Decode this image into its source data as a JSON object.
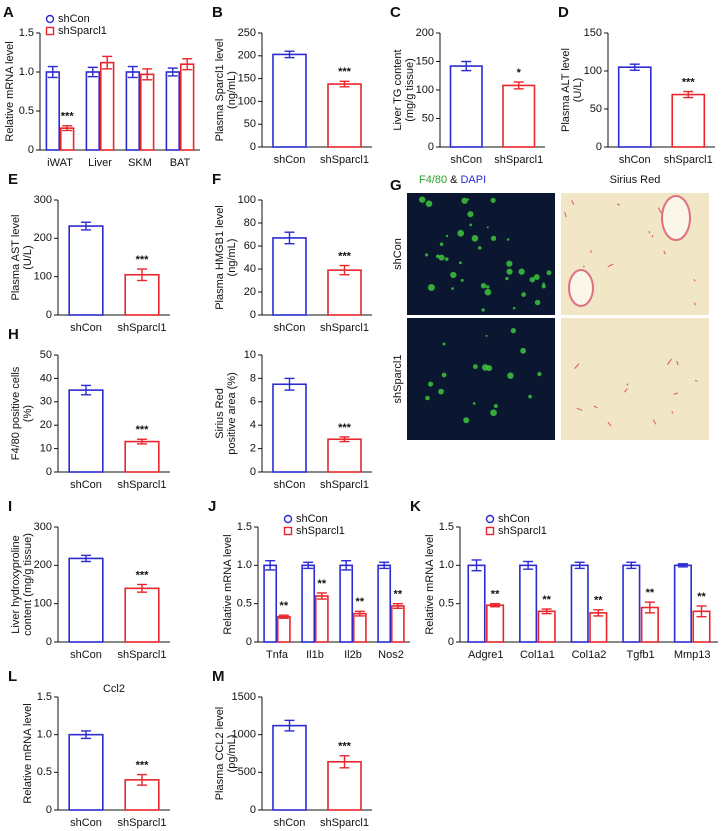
{
  "chart_data": [
    {
      "type": "grouped-bar",
      "panel": "A",
      "ylabel": [
        "Relative mRNA level"
      ],
      "categories": [
        "iWAT",
        "Liver",
        "SKM",
        "BAT"
      ],
      "ylim": [
        0,
        1.5
      ],
      "yticks": [
        0,
        0.5,
        {
          "value": 1,
          "label": "1.0"
        },
        1.5
      ],
      "legend": "top-left",
      "series": [
        {
          "name": "shCon",
          "color": "#2b2bd0",
          "marker": "circle",
          "values": [
            1.0,
            1.0,
            1.0,
            1.0
          ],
          "errors": [
            0.07,
            0.06,
            0.07,
            0.05
          ],
          "annotations": [
            null,
            null,
            null,
            null
          ]
        },
        {
          "name": "shSparcl1",
          "color": "#e8262b",
          "marker": "square",
          "values": [
            0.28,
            1.12,
            0.97,
            1.1
          ],
          "errors": [
            0.03,
            0.08,
            0.07,
            0.07
          ],
          "annotations": [
            "***",
            null,
            null,
            null
          ]
        }
      ]
    },
    {
      "type": "bar",
      "panel": "B",
      "ylabel": [
        "Plasma Sparcl1 level",
        "(ng/mL)"
      ],
      "categories": [
        "shCon",
        "shSparcl1"
      ],
      "colors": [
        "#2b2bd0",
        "#e8262b"
      ],
      "values": [
        203,
        138
      ],
      "errors": [
        7,
        6
      ],
      "annotations": [
        null,
        "***"
      ],
      "ylim": [
        0,
        250
      ],
      "yticks": [
        0,
        50,
        100,
        150,
        200,
        250
      ]
    },
    {
      "type": "bar",
      "panel": "C",
      "ylabel": [
        "Liver TG content",
        "(mg/g tissue)"
      ],
      "categories": [
        "shCon",
        "shSparcl1"
      ],
      "colors": [
        "#2b2bd0",
        "#e8262b"
      ],
      "values": [
        142,
        108
      ],
      "errors": [
        8,
        6
      ],
      "annotations": [
        null,
        "*"
      ],
      "ylim": [
        0,
        200
      ],
      "yticks": [
        0,
        50,
        100,
        150,
        200
      ]
    },
    {
      "type": "bar",
      "panel": "D",
      "ylabel": [
        "Plasma ALT level",
        "(U/L)"
      ],
      "categories": [
        "shCon",
        "shSparcl1"
      ],
      "colors": [
        "#2b2bd0",
        "#e8262b"
      ],
      "values": [
        105,
        69
      ],
      "errors": [
        4,
        4
      ],
      "annotations": [
        null,
        "***"
      ],
      "ylim": [
        0,
        150
      ],
      "yticks": [
        0,
        50,
        100,
        150
      ]
    },
    {
      "type": "bar",
      "panel": "E",
      "ylabel": [
        "Plasma AST level",
        "(U/L)"
      ],
      "categories": [
        "shCon",
        "shSparcl1"
      ],
      "colors": [
        "#2b2bd0",
        "#e8262b"
      ],
      "values": [
        232,
        105
      ],
      "errors": [
        10,
        15
      ],
      "annotations": [
        null,
        "***"
      ],
      "ylim": [
        0,
        300
      ],
      "yticks": [
        0,
        100,
        200,
        300
      ]
    },
    {
      "type": "bar",
      "panel": "F",
      "ylabel": [
        "Plasma HMGB1 level",
        "(ng/mL)"
      ],
      "categories": [
        "shCon",
        "shSparcl1"
      ],
      "colors": [
        "#2b2bd0",
        "#e8262b"
      ],
      "values": [
        67,
        39
      ],
      "errors": [
        5,
        4
      ],
      "annotations": [
        null,
        "***"
      ],
      "ylim": [
        0,
        100
      ],
      "yticks": [
        0,
        20,
        40,
        60,
        80,
        100
      ]
    },
    {
      "type": "image",
      "panel": "G",
      "columns": [
        [
          "F4/80",
          "&",
          "DAPI"
        ],
        [
          "Sirius Red"
        ]
      ],
      "rows": [
        "shCon",
        "shSparcl1"
      ]
    },
    {
      "type": "bar",
      "panel": "H",
      "ylabel": [
        "F4/80 positive cells",
        "(%)"
      ],
      "categories": [
        "shCon",
        "shSparcl1"
      ],
      "colors": [
        "#2b2bd0",
        "#e8262b"
      ],
      "values": [
        35,
        13
      ],
      "errors": [
        2,
        1
      ],
      "annotations": [
        null,
        "***"
      ],
      "ylim": [
        0,
        50
      ],
      "yticks": [
        0,
        10,
        20,
        30,
        40,
        50
      ]
    },
    {
      "type": "bar",
      "ylabel": [
        "Sirius Red",
        "positive area (%)"
      ],
      "categories": [
        "shCon",
        "shSparcl1"
      ],
      "colors": [
        "#2b2bd0",
        "#e8262b"
      ],
      "values": [
        7.5,
        2.8
      ],
      "errors": [
        0.5,
        0.2
      ],
      "annotations": [
        null,
        "***"
      ],
      "ylim": [
        0,
        10
      ],
      "yticks": [
        0,
        2,
        4,
        6,
        8,
        10
      ]
    },
    {
      "type": "bar",
      "panel": "I",
      "ylabel": [
        "Liver hydroxyproline",
        "content (mg/g tissue)"
      ],
      "categories": [
        "shCon",
        "shSparcl1"
      ],
      "colors": [
        "#2b2bd0",
        "#e8262b"
      ],
      "values": [
        218,
        140
      ],
      "errors": [
        8,
        10
      ],
      "annotations": [
        null,
        "***"
      ],
      "ylim": [
        0,
        300
      ],
      "yticks": [
        0,
        100,
        200,
        300
      ]
    },
    {
      "type": "grouped-bar",
      "panel": "J",
      "ylabel": [
        "Relative mRNA level"
      ],
      "categories": [
        "Tnfa",
        "Il1b",
        "Il2b",
        "Nos2"
      ],
      "ylim": [
        0,
        1.5
      ],
      "yticks": [
        0,
        0.5,
        {
          "value": 1,
          "label": "1.0"
        },
        1.5
      ],
      "legend": "top-left",
      "series": [
        {
          "name": "shCon",
          "color": "#2b2bd0",
          "marker": "circle",
          "values": [
            1.0,
            1.0,
            1.0,
            1.0
          ],
          "errors": [
            0.06,
            0.04,
            0.06,
            0.04
          ],
          "annotations": [
            null,
            null,
            null,
            null
          ]
        },
        {
          "name": "shSparcl1",
          "color": "#e8262b",
          "marker": "square",
          "values": [
            0.33,
            0.6,
            0.37,
            0.47
          ],
          "errors": [
            0.02,
            0.04,
            0.03,
            0.03
          ],
          "annotations": [
            "**",
            "**",
            "**",
            "**"
          ]
        }
      ]
    },
    {
      "type": "grouped-bar",
      "panel": "K",
      "ylabel": [
        "Relative mRNA level"
      ],
      "categories": [
        "Adgre1",
        "Col1a1",
        "Col1a2",
        "Tgfb1",
        "Mmp13"
      ],
      "ylim": [
        0,
        1.5
      ],
      "yticks": [
        0,
        0.5,
        {
          "value": 1,
          "label": "1.0"
        },
        1.5
      ],
      "legend": "top-left",
      "series": [
        {
          "name": "shCon",
          "color": "#2b2bd0",
          "marker": "circle",
          "values": [
            1.0,
            1.0,
            1.0,
            1.0,
            1.0
          ],
          "errors": [
            0.07,
            0.05,
            0.04,
            0.04,
            0.02
          ],
          "annotations": [
            null,
            null,
            null,
            null,
            null
          ]
        },
        {
          "name": "shSparcl1",
          "color": "#e8262b",
          "marker": "square",
          "values": [
            0.48,
            0.4,
            0.38,
            0.45,
            0.4
          ],
          "errors": [
            0.02,
            0.03,
            0.04,
            0.07,
            0.07
          ],
          "annotations": [
            "**",
            "**",
            "**",
            "**",
            "**"
          ]
        }
      ]
    },
    {
      "type": "bar",
      "panel": "L",
      "title": "Ccl2",
      "ylabel": [
        "Relative mRNA level"
      ],
      "categories": [
        "shCon",
        "shSparcl1"
      ],
      "colors": [
        "#2b2bd0",
        "#e8262b"
      ],
      "values": [
        1.0,
        0.4
      ],
      "errors": [
        0.05,
        0.07
      ],
      "annotations": [
        null,
        "***"
      ],
      "ylim": [
        0,
        1.5
      ],
      "yticks": [
        0,
        0.5,
        {
          "value": 1,
          "label": "1.0"
        },
        1.5
      ]
    },
    {
      "type": "bar",
      "panel": "M",
      "ylabel": [
        "Plasma CCL2  level",
        "(pg/mL)"
      ],
      "categories": [
        "shCon",
        "shSparcl1"
      ],
      "colors": [
        "#2b2bd0",
        "#e8262b"
      ],
      "values": [
        1120,
        640
      ],
      "errors": [
        70,
        80
      ],
      "annotations": [
        null,
        "***"
      ],
      "ylim": [
        0,
        1500
      ],
      "yticks": [
        0,
        500,
        1000,
        1500
      ]
    }
  ]
}
